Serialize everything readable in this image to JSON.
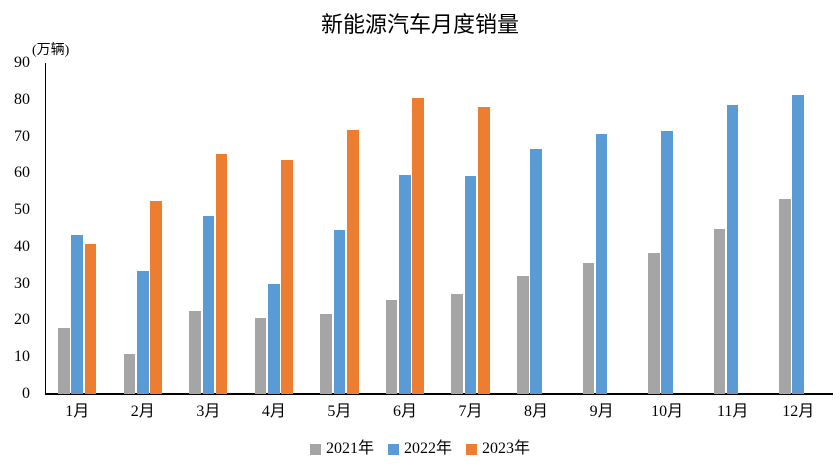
{
  "title": "新能源汽车月度销量",
  "unit_label": "(万辆)",
  "chart_data": {
    "type": "bar",
    "title": "新能源汽车月度销量",
    "ylabel": "(万辆)",
    "xlabel": "",
    "categories": [
      "1月",
      "2月",
      "3月",
      "4月",
      "5月",
      "6月",
      "7月",
      "8月",
      "9月",
      "10月",
      "11月",
      "12月"
    ],
    "series": [
      {
        "name": "2021年",
        "color": "#A5A5A5",
        "values": [
          17.9,
          11.0,
          22.6,
          20.6,
          21.7,
          25.6,
          27.1,
          32.1,
          35.7,
          38.3,
          45.0,
          53.1
        ]
      },
      {
        "name": "2022年",
        "color": "#5B9BD5",
        "values": [
          43.1,
          33.4,
          48.4,
          29.9,
          44.7,
          59.6,
          59.3,
          66.6,
          70.8,
          71.4,
          78.6,
          81.4
        ]
      },
      {
        "name": "2023年",
        "color": "#ED7D31",
        "values": [
          40.8,
          52.5,
          65.3,
          63.6,
          71.7,
          80.6,
          78.0,
          null,
          null,
          null,
          null,
          null
        ]
      }
    ],
    "ylim": [
      0,
      90
    ],
    "ytick_step": 10,
    "grid": false,
    "legend_position": "bottom"
  }
}
